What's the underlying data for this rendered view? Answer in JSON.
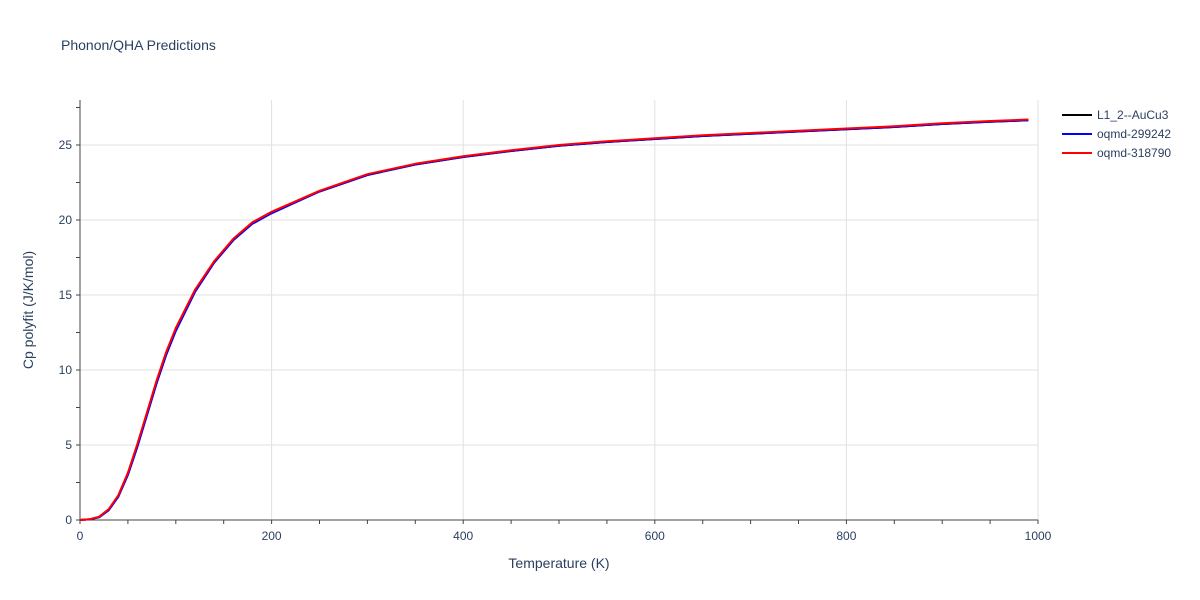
{
  "chart_data": {
    "type": "line",
    "title": "Phonon/QHA Predictions",
    "xlabel": "Temperature (K)",
    "ylabel": "Cp polyfit (J/K/mol)",
    "xlim": [
      0,
      1000
    ],
    "ylim": [
      0,
      28
    ],
    "xticks": [
      0,
      200,
      400,
      600,
      800,
      1000
    ],
    "yticks": [
      0,
      5,
      10,
      15,
      20,
      25
    ],
    "grid": true,
    "legend_position": "top-right",
    "x": [
      0,
      10,
      20,
      30,
      40,
      50,
      60,
      70,
      80,
      90,
      100,
      120,
      140,
      160,
      180,
      200,
      250,
      300,
      350,
      400,
      450,
      500,
      550,
      600,
      650,
      700,
      750,
      800,
      850,
      900,
      950,
      990
    ],
    "series": [
      {
        "name": "L1_2--AuCu3",
        "color": "#000000",
        "values": [
          0,
          0.05,
          0.2,
          0.7,
          1.6,
          3.1,
          5.0,
          7.1,
          9.2,
          11.1,
          12.7,
          15.3,
          17.2,
          18.7,
          19.8,
          20.5,
          21.9,
          23.0,
          23.7,
          24.2,
          24.6,
          24.95,
          25.2,
          25.4,
          25.6,
          25.75,
          25.9,
          26.05,
          26.2,
          26.4,
          26.55,
          26.65
        ]
      },
      {
        "name": "oqmd-299242",
        "color": "#0000ff",
        "values": [
          0,
          0.04,
          0.18,
          0.65,
          1.55,
          3.0,
          4.9,
          7.0,
          9.1,
          11.0,
          12.6,
          15.2,
          17.15,
          18.65,
          19.75,
          20.45,
          21.9,
          23.0,
          23.7,
          24.2,
          24.6,
          24.95,
          25.2,
          25.4,
          25.6,
          25.75,
          25.9,
          26.05,
          26.2,
          26.4,
          26.55,
          26.65
        ]
      },
      {
        "name": "oqmd-318790",
        "color": "#ff0000",
        "values": [
          0,
          0.05,
          0.22,
          0.72,
          1.65,
          3.15,
          5.1,
          7.2,
          9.3,
          11.2,
          12.8,
          15.35,
          17.25,
          18.75,
          19.85,
          20.55,
          21.95,
          23.05,
          23.75,
          24.25,
          24.65,
          25.0,
          25.25,
          25.45,
          25.65,
          25.8,
          25.95,
          26.1,
          26.25,
          26.45,
          26.6,
          26.7
        ]
      }
    ]
  }
}
